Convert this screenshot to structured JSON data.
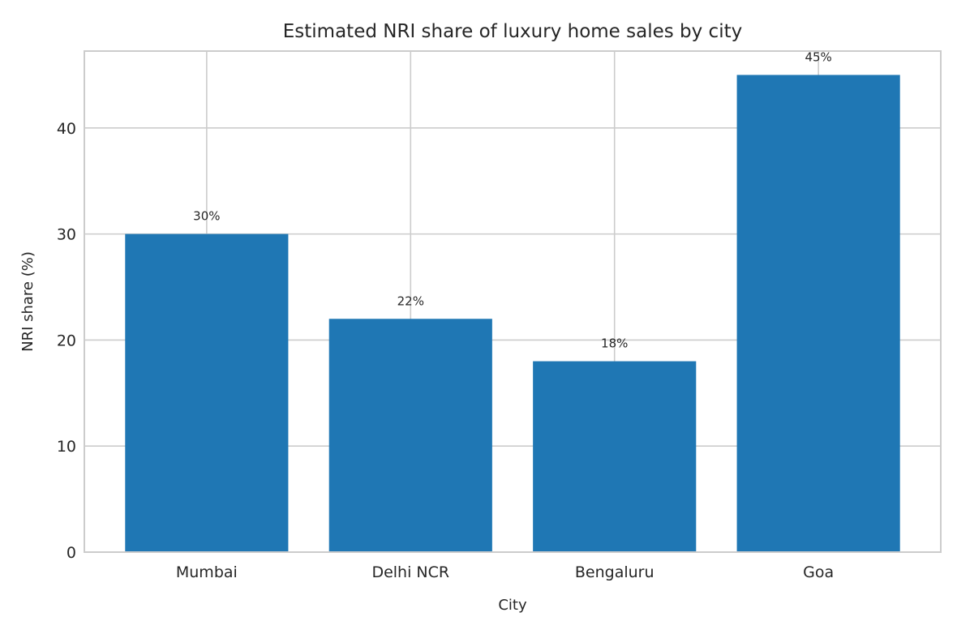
{
  "chart_data": {
    "type": "bar",
    "title": "Estimated NRI share of luxury home sales by city",
    "xlabel": "City",
    "ylabel": "NRI share (%)",
    "categories": [
      "Mumbai",
      "Delhi NCR",
      "Bengaluru",
      "Goa"
    ],
    "values": [
      30,
      22,
      18,
      45
    ],
    "data_labels": [
      "30%",
      "22%",
      "18%",
      "45%"
    ],
    "ylim": [
      0,
      47.25
    ],
    "yticks": [
      0,
      10,
      20,
      30,
      40
    ],
    "grid": true,
    "colors": {
      "bar": "#1f77b4",
      "grid": "#cccccc",
      "text": "#262626"
    }
  }
}
